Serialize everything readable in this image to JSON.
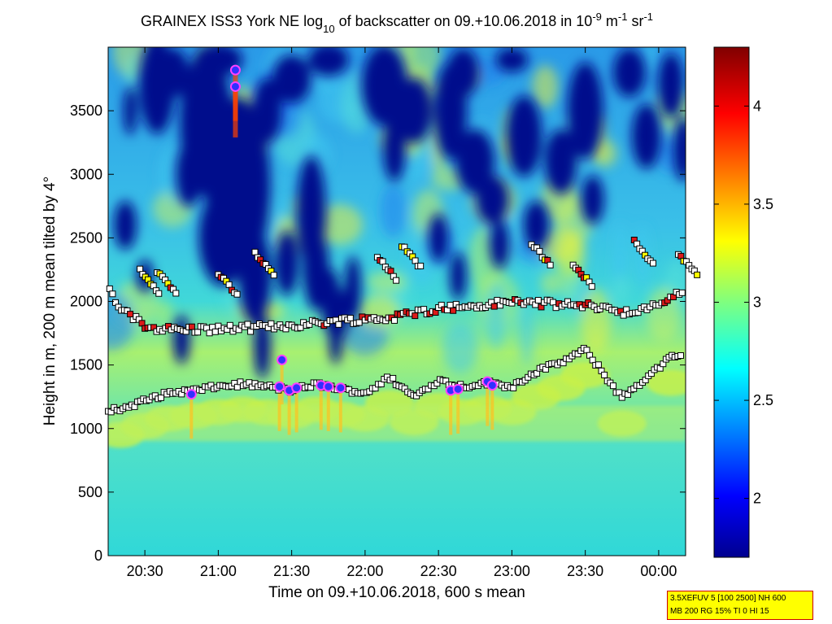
{
  "chart_data": {
    "type": "heatmap",
    "title": {
      "p1": "GRAINEX ISS3 York NE log",
      "sub1": "10",
      "p2": " of backscatter on 09.+10.06.2018 in 10",
      "sup1": "-9",
      "p3": " m",
      "sup2": "-1",
      "p4": " sr",
      "sup3": "-1"
    },
    "xlabel": "Time on 09.+10.06.2018, 600 s mean",
    "ylabel": "Height in m, 200 m mean tilted by 4°",
    "x_ticks": [
      "20:30",
      "21:00",
      "21:30",
      "22:00",
      "22:30",
      "23:00",
      "23:30",
      "00:00"
    ],
    "x_tick_minutes": [
      30,
      60,
      90,
      120,
      150,
      180,
      210,
      240
    ],
    "xlim_minutes_after_20_00": [
      15,
      251
    ],
    "y_ticks": [
      0,
      500,
      1000,
      1500,
      2000,
      2500,
      3000,
      3500
    ],
    "ylim": [
      0,
      4000
    ],
    "colorbar": {
      "ticks": [
        "2",
        "2.5",
        "3",
        "3.5",
        "4"
      ],
      "tick_values": [
        2,
        2.5,
        3,
        3.5,
        4
      ],
      "range": [
        1.7,
        4.3
      ],
      "colormap": "jet"
    },
    "cloud_base": [
      {
        "t": 20.0,
        "h": 1150
      },
      {
        "t": 30.0,
        "h": 1220
      },
      {
        "t": 40.0,
        "h": 1280
      },
      {
        "t": 50.0,
        "h": 1300
      },
      {
        "t": 60.0,
        "h": 1330
      },
      {
        "t": 70.0,
        "h": 1350
      },
      {
        "t": 80.0,
        "h": 1330
      },
      {
        "t": 90.0,
        "h": 1300
      },
      {
        "t": 100.0,
        "h": 1350
      },
      {
        "t": 110.0,
        "h": 1310
      },
      {
        "t": 120.0,
        "h": 1280
      },
      {
        "t": 130.0,
        "h": 1400
      },
      {
        "t": 140.0,
        "h": 1250
      },
      {
        "t": 150.0,
        "h": 1380
      },
      {
        "t": 160.0,
        "h": 1330
      },
      {
        "t": 170.0,
        "h": 1360
      },
      {
        "t": 180.0,
        "h": 1330
      },
      {
        "t": 190.0,
        "h": 1450
      },
      {
        "t": 200.0,
        "h": 1520
      },
      {
        "t": 210.0,
        "h": 1620
      },
      {
        "t": 225.0,
        "h": 1240
      },
      {
        "t": 245.0,
        "h": 1560
      }
    ],
    "aerosol_layer_top": [
      {
        "t": 15.0,
        "h": 2080
      },
      {
        "t": 20.0,
        "h": 1930
      },
      {
        "t": 30.0,
        "h": 1800
      },
      {
        "t": 40.0,
        "h": 1780
      },
      {
        "t": 55.0,
        "h": 1780
      },
      {
        "t": 70.0,
        "h": 1790
      },
      {
        "t": 80.0,
        "h": 1800
      },
      {
        "t": 95.0,
        "h": 1820
      },
      {
        "t": 110.0,
        "h": 1850
      },
      {
        "t": 130.0,
        "h": 1870
      },
      {
        "t": 150.0,
        "h": 1950
      },
      {
        "t": 165.0,
        "h": 1960
      },
      {
        "t": 180.0,
        "h": 2000
      },
      {
        "t": 195.0,
        "h": 1980
      },
      {
        "t": 215.0,
        "h": 1960
      },
      {
        "t": 230.0,
        "h": 1900
      },
      {
        "t": 250.0,
        "h": 2080
      }
    ],
    "upper_layer": [
      {
        "t": 28.0,
        "h": 2250
      },
      {
        "t": 35.0,
        "h": 2240
      },
      {
        "t": 60.0,
        "h": 2220
      },
      {
        "t": 75.0,
        "h": 2380
      },
      {
        "t": 125.0,
        "h": 2350
      },
      {
        "t": 135.0,
        "h": 2440
      },
      {
        "t": 188.0,
        "h": 2460
      },
      {
        "t": 205.0,
        "h": 2300
      },
      {
        "t": 230.0,
        "h": 2470
      },
      {
        "t": 248.0,
        "h": 2380
      }
    ],
    "strong_returns": [
      {
        "t": 49.0,
        "h": 1270
      },
      {
        "t": 67.0,
        "h": 3820
      },
      {
        "t": 67.0,
        "h": 3690
      },
      {
        "t": 86.0,
        "h": 1540
      },
      {
        "t": 85.0,
        "h": 1330
      },
      {
        "t": 89.0,
        "h": 1300
      },
      {
        "t": 92.0,
        "h": 1320
      },
      {
        "t": 102.0,
        "h": 1340
      },
      {
        "t": 105.0,
        "h": 1330
      },
      {
        "t": 110.0,
        "h": 1320
      },
      {
        "t": 155.0,
        "h": 1300
      },
      {
        "t": 158.0,
        "h": 1310
      },
      {
        "t": 170.0,
        "h": 1370
      },
      {
        "t": 172.0,
        "h": 1340
      }
    ]
  },
  "info_box": {
    "line1": "3.5XEFUV 5 [100 2500] NH 600",
    "line2": "MB 200 RG 15% TI 0 HI 15"
  },
  "colors": {
    "background_high": "#000080",
    "boundary_layer": "#7ee0a8",
    "marker_fill_white": "#ffffff",
    "marker_fill_red": "#dd1a1a",
    "marker_fill_yellow": "#ffff00",
    "strong_return": "#3030ff",
    "info_box_bg": "#ffff00"
  }
}
